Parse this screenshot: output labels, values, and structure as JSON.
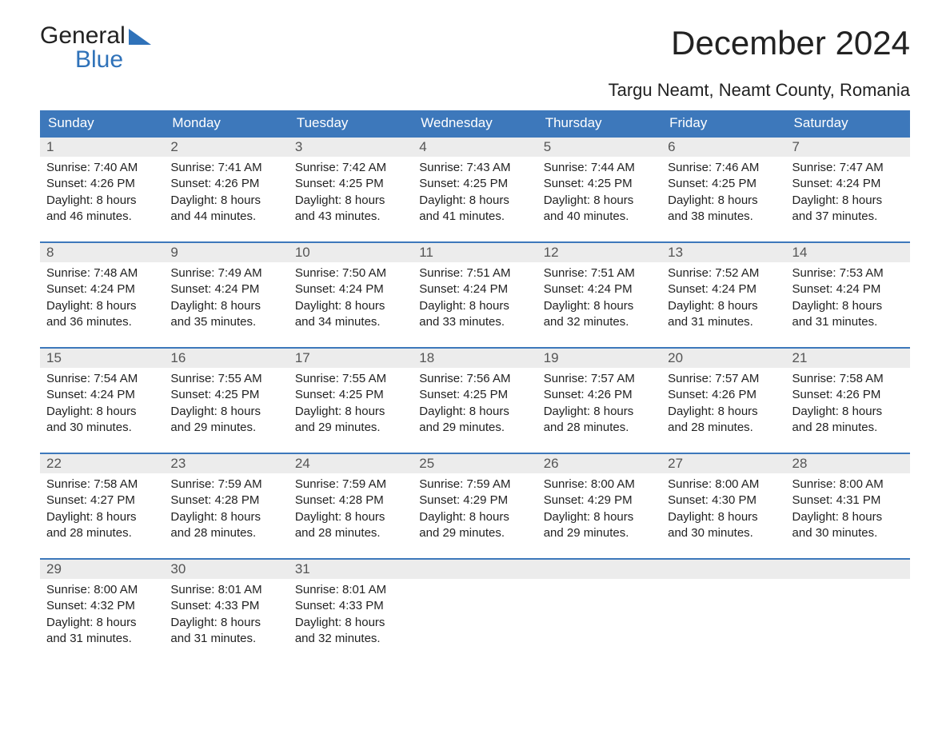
{
  "logo": {
    "word1": "General",
    "word2": "Blue"
  },
  "title": "December 2024",
  "location": "Targu Neamt, Neamt County, Romania",
  "colors": {
    "header_bg": "#3d78bb",
    "header_text": "#ffffff",
    "daynum_bg": "#ececec",
    "daynum_text": "#555555",
    "body_text": "#222222",
    "logo_accent": "#2f72b9",
    "row_border": "#3d78bb"
  },
  "day_headers": [
    "Sunday",
    "Monday",
    "Tuesday",
    "Wednesday",
    "Thursday",
    "Friday",
    "Saturday"
  ],
  "weeks": [
    [
      {
        "n": "1",
        "sunrise": "Sunrise: 7:40 AM",
        "sunset": "Sunset: 4:26 PM",
        "daylight": "Daylight: 8 hours and 46 minutes."
      },
      {
        "n": "2",
        "sunrise": "Sunrise: 7:41 AM",
        "sunset": "Sunset: 4:26 PM",
        "daylight": "Daylight: 8 hours and 44 minutes."
      },
      {
        "n": "3",
        "sunrise": "Sunrise: 7:42 AM",
        "sunset": "Sunset: 4:25 PM",
        "daylight": "Daylight: 8 hours and 43 minutes."
      },
      {
        "n": "4",
        "sunrise": "Sunrise: 7:43 AM",
        "sunset": "Sunset: 4:25 PM",
        "daylight": "Daylight: 8 hours and 41 minutes."
      },
      {
        "n": "5",
        "sunrise": "Sunrise: 7:44 AM",
        "sunset": "Sunset: 4:25 PM",
        "daylight": "Daylight: 8 hours and 40 minutes."
      },
      {
        "n": "6",
        "sunrise": "Sunrise: 7:46 AM",
        "sunset": "Sunset: 4:25 PM",
        "daylight": "Daylight: 8 hours and 38 minutes."
      },
      {
        "n": "7",
        "sunrise": "Sunrise: 7:47 AM",
        "sunset": "Sunset: 4:24 PM",
        "daylight": "Daylight: 8 hours and 37 minutes."
      }
    ],
    [
      {
        "n": "8",
        "sunrise": "Sunrise: 7:48 AM",
        "sunset": "Sunset: 4:24 PM",
        "daylight": "Daylight: 8 hours and 36 minutes."
      },
      {
        "n": "9",
        "sunrise": "Sunrise: 7:49 AM",
        "sunset": "Sunset: 4:24 PM",
        "daylight": "Daylight: 8 hours and 35 minutes."
      },
      {
        "n": "10",
        "sunrise": "Sunrise: 7:50 AM",
        "sunset": "Sunset: 4:24 PM",
        "daylight": "Daylight: 8 hours and 34 minutes."
      },
      {
        "n": "11",
        "sunrise": "Sunrise: 7:51 AM",
        "sunset": "Sunset: 4:24 PM",
        "daylight": "Daylight: 8 hours and 33 minutes."
      },
      {
        "n": "12",
        "sunrise": "Sunrise: 7:51 AM",
        "sunset": "Sunset: 4:24 PM",
        "daylight": "Daylight: 8 hours and 32 minutes."
      },
      {
        "n": "13",
        "sunrise": "Sunrise: 7:52 AM",
        "sunset": "Sunset: 4:24 PM",
        "daylight": "Daylight: 8 hours and 31 minutes."
      },
      {
        "n": "14",
        "sunrise": "Sunrise: 7:53 AM",
        "sunset": "Sunset: 4:24 PM",
        "daylight": "Daylight: 8 hours and 31 minutes."
      }
    ],
    [
      {
        "n": "15",
        "sunrise": "Sunrise: 7:54 AM",
        "sunset": "Sunset: 4:24 PM",
        "daylight": "Daylight: 8 hours and 30 minutes."
      },
      {
        "n": "16",
        "sunrise": "Sunrise: 7:55 AM",
        "sunset": "Sunset: 4:25 PM",
        "daylight": "Daylight: 8 hours and 29 minutes."
      },
      {
        "n": "17",
        "sunrise": "Sunrise: 7:55 AM",
        "sunset": "Sunset: 4:25 PM",
        "daylight": "Daylight: 8 hours and 29 minutes."
      },
      {
        "n": "18",
        "sunrise": "Sunrise: 7:56 AM",
        "sunset": "Sunset: 4:25 PM",
        "daylight": "Daylight: 8 hours and 29 minutes."
      },
      {
        "n": "19",
        "sunrise": "Sunrise: 7:57 AM",
        "sunset": "Sunset: 4:26 PM",
        "daylight": "Daylight: 8 hours and 28 minutes."
      },
      {
        "n": "20",
        "sunrise": "Sunrise: 7:57 AM",
        "sunset": "Sunset: 4:26 PM",
        "daylight": "Daylight: 8 hours and 28 minutes."
      },
      {
        "n": "21",
        "sunrise": "Sunrise: 7:58 AM",
        "sunset": "Sunset: 4:26 PM",
        "daylight": "Daylight: 8 hours and 28 minutes."
      }
    ],
    [
      {
        "n": "22",
        "sunrise": "Sunrise: 7:58 AM",
        "sunset": "Sunset: 4:27 PM",
        "daylight": "Daylight: 8 hours and 28 minutes."
      },
      {
        "n": "23",
        "sunrise": "Sunrise: 7:59 AM",
        "sunset": "Sunset: 4:28 PM",
        "daylight": "Daylight: 8 hours and 28 minutes."
      },
      {
        "n": "24",
        "sunrise": "Sunrise: 7:59 AM",
        "sunset": "Sunset: 4:28 PM",
        "daylight": "Daylight: 8 hours and 28 minutes."
      },
      {
        "n": "25",
        "sunrise": "Sunrise: 7:59 AM",
        "sunset": "Sunset: 4:29 PM",
        "daylight": "Daylight: 8 hours and 29 minutes."
      },
      {
        "n": "26",
        "sunrise": "Sunrise: 8:00 AM",
        "sunset": "Sunset: 4:29 PM",
        "daylight": "Daylight: 8 hours and 29 minutes."
      },
      {
        "n": "27",
        "sunrise": "Sunrise: 8:00 AM",
        "sunset": "Sunset: 4:30 PM",
        "daylight": "Daylight: 8 hours and 30 minutes."
      },
      {
        "n": "28",
        "sunrise": "Sunrise: 8:00 AM",
        "sunset": "Sunset: 4:31 PM",
        "daylight": "Daylight: 8 hours and 30 minutes."
      }
    ],
    [
      {
        "n": "29",
        "sunrise": "Sunrise: 8:00 AM",
        "sunset": "Sunset: 4:32 PM",
        "daylight": "Daylight: 8 hours and 31 minutes."
      },
      {
        "n": "30",
        "sunrise": "Sunrise: 8:01 AM",
        "sunset": "Sunset: 4:33 PM",
        "daylight": "Daylight: 8 hours and 31 minutes."
      },
      {
        "n": "31",
        "sunrise": "Sunrise: 8:01 AM",
        "sunset": "Sunset: 4:33 PM",
        "daylight": "Daylight: 8 hours and 32 minutes."
      },
      null,
      null,
      null,
      null
    ]
  ]
}
